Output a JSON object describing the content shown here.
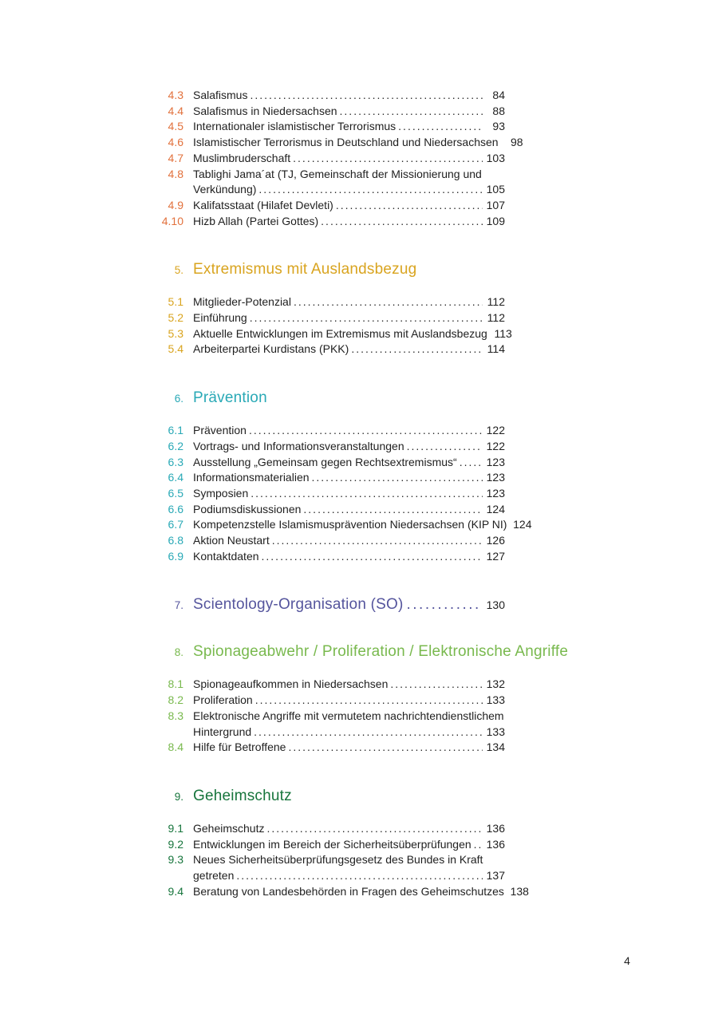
{
  "document": {
    "footer_page_number": "4"
  },
  "toc": {
    "text_color": "#1f1f1f",
    "blocks": [
      {
        "type": "items",
        "color": "#e2713c",
        "items": [
          {
            "num": "4.3",
            "title": "Salafismus",
            "page": "84"
          },
          {
            "num": "4.4",
            "title": "Salafismus in Niedersachsen",
            "page": "88"
          },
          {
            "num": "4.5",
            "title": "Internationaler islamistischer Terrorismus",
            "page": "93"
          },
          {
            "num": "4.6",
            "title": "Islamistischer Terrorismus in Deutschland und Niedersachsen",
            "page": "98"
          },
          {
            "num": "4.7",
            "title": "Muslimbruderschaft",
            "page": "103"
          },
          {
            "num": "4.8",
            "title": "Tablighi Jama´at (TJ, Gemeinschaft der Missionierung und",
            "title2": "Verkündung)",
            "page": "105"
          },
          {
            "num": "4.9",
            "title": "Kalifatsstaat (Hilafet Devleti)",
            "page": "107"
          },
          {
            "num": "4.10",
            "title": "Hizb Allah (Partei Gottes)",
            "page": "109"
          }
        ]
      },
      {
        "type": "heading",
        "num": "5.",
        "title": "Extremismus mit Auslandsbezug",
        "color": "#d9a41f"
      },
      {
        "type": "items",
        "color": "#d9a41f",
        "items": [
          {
            "num": "5.1",
            "title": "Mitglieder-Potenzial",
            "page": "112"
          },
          {
            "num": "5.2",
            "title": "Einführung",
            "page": "112"
          },
          {
            "num": "5.3",
            "title": "Aktuelle Entwicklungen im Extremismus mit Auslandsbezug",
            "page": "113"
          },
          {
            "num": "5.4",
            "title": "Arbeiterpartei Kurdistans (PKK)",
            "page": "114"
          }
        ]
      },
      {
        "type": "heading",
        "num": "6.",
        "title": "Prävention",
        "color": "#29a9b6"
      },
      {
        "type": "items",
        "color": "#29a9b6",
        "items": [
          {
            "num": "6.1",
            "title": "Prävention",
            "page": "122"
          },
          {
            "num": "6.2",
            "title": "Vortrags- und Informationsveranstaltungen",
            "page": "122"
          },
          {
            "num": "6.3",
            "title": "Ausstellung „Gemeinsam gegen Rechtsextremismus“",
            "page": "123"
          },
          {
            "num": "6.4",
            "title": "Informationsmaterialien",
            "page": "123"
          },
          {
            "num": "6.5",
            "title": "Symposien",
            "page": "123"
          },
          {
            "num": "6.6",
            "title": "Podiumsdiskussionen",
            "page": "124"
          },
          {
            "num": "6.7",
            "title": "Kompetenzstelle Islamismusprävention Niedersachsen (KIP NI)",
            "page": "124"
          },
          {
            "num": "6.8",
            "title": "Aktion Neustart",
            "page": "126"
          },
          {
            "num": "6.9",
            "title": "Kontaktdaten",
            "page": "127"
          }
        ]
      },
      {
        "type": "heading",
        "variant": "h7",
        "num": "7.",
        "title": "Scientology-Organisation (SO)",
        "page": "130",
        "color": "#55559d"
      },
      {
        "type": "heading",
        "variant": "h8",
        "num": "8.",
        "title": "Spionageabwehr / Proliferation / Elektronische Angriffe",
        "color": "#79b94e"
      },
      {
        "type": "items",
        "color": "#79b94e",
        "items": [
          {
            "num": "8.1",
            "title": "Spionageaufkommen in Niedersachsen",
            "page": "132"
          },
          {
            "num": "8.2",
            "title": "Proliferation",
            "page": "133"
          },
          {
            "num": "8.3",
            "title": "Elektronische Angriffe mit vermutetem nachrichtendienstlichem",
            "title2": "Hintergrund",
            "page": "133"
          },
          {
            "num": "8.4",
            "title": "Hilfe für Betroffene",
            "page": "134"
          }
        ]
      },
      {
        "type": "heading",
        "num": "9.",
        "title": "Geheimschutz",
        "color": "#17753c"
      },
      {
        "type": "items",
        "color": "#17753c",
        "items": [
          {
            "num": "9.1",
            "title": "Geheimschutz",
            "page": "136"
          },
          {
            "num": "9.2",
            "title": "Entwicklungen im Bereich der Sicherheitsüberprüfungen",
            "page": "136"
          },
          {
            "num": "9.3",
            "title": "Neues Sicherheitsüberprüfungsgesetz des Bundes in Kraft",
            "title2": "getreten",
            "page": "137"
          },
          {
            "num": "9.4",
            "title": "Beratung von Landesbehörden in Fragen des Geheimschutzes",
            "page": "138"
          }
        ]
      }
    ]
  }
}
